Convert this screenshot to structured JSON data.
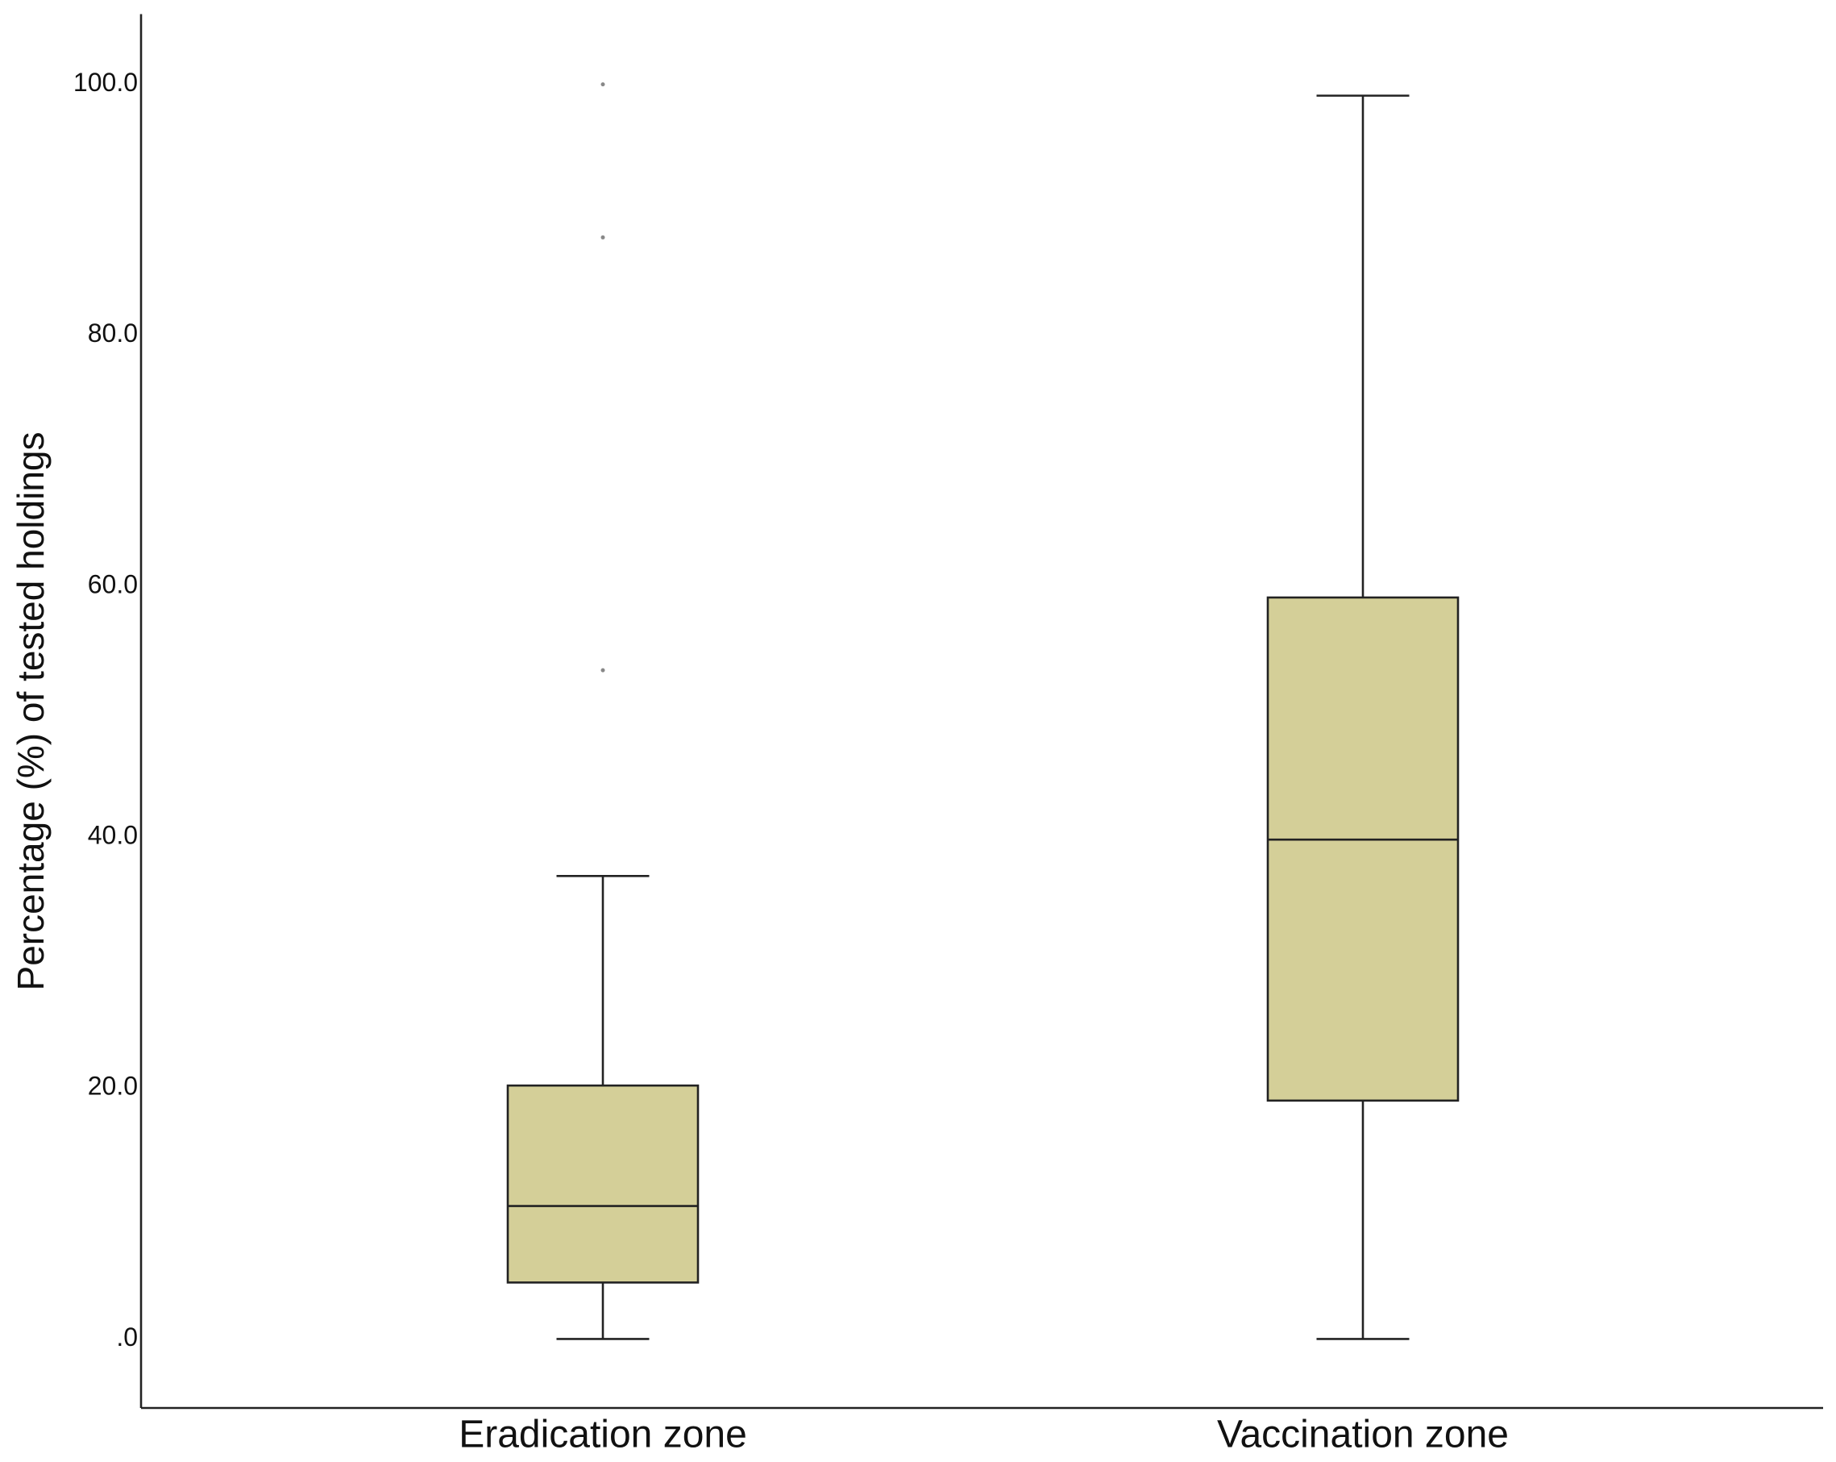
{
  "chart_data": {
    "type": "box",
    "y_label": "Percentage (%) of tested holdings",
    "categories": [
      "Eradication zone",
      "Vaccination zone"
    ],
    "boxes": [
      {
        "min": 0,
        "q1": 4.5,
        "median": 10.6,
        "q3": 20.2,
        "max": 36.9,
        "outliers": [
          100,
          87.8,
          53.3
        ]
      },
      {
        "min": 0,
        "q1": 19.0,
        "median": 39.8,
        "q3": 59.1,
        "max": 99.1,
        "outliers": []
      }
    ],
    "color": "#d4cf98",
    "ylim": [
      -5.5,
      105.6
    ],
    "yticks": [
      {
        "value": 0,
        "label": ".0"
      },
      {
        "value": 20,
        "label": "20.0"
      },
      {
        "value": 40,
        "label": "40.0"
      },
      {
        "value": 60,
        "label": "60.0"
      },
      {
        "value": 80,
        "label": "80.0"
      },
      {
        "value": 100,
        "label": "100.0"
      }
    ],
    "grid": false
  }
}
